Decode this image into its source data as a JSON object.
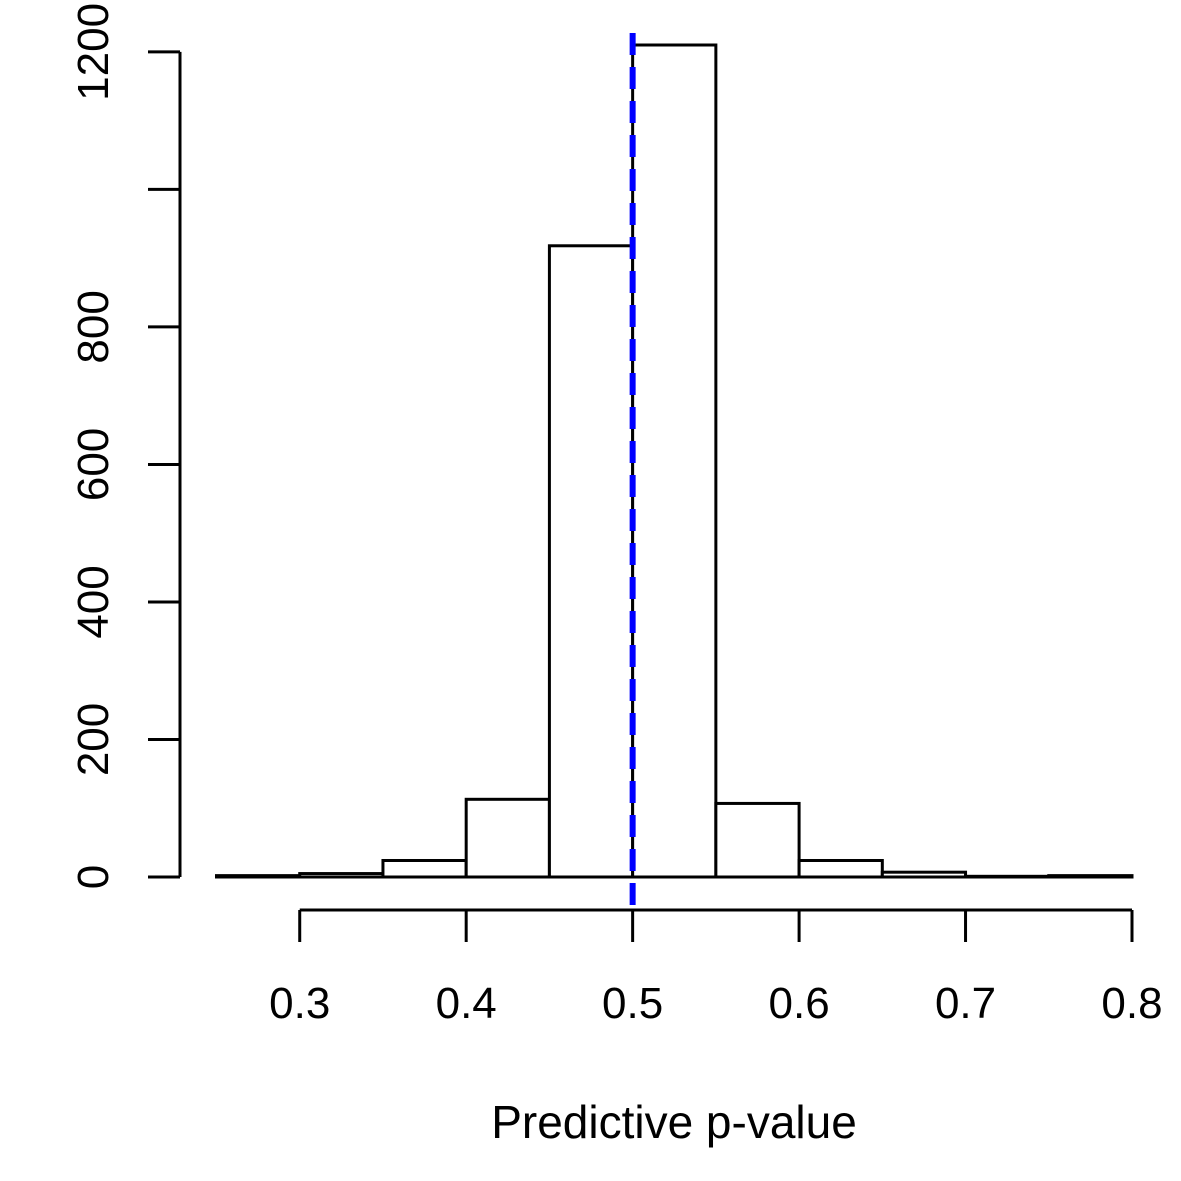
{
  "chart_data": {
    "type": "bar",
    "title": "",
    "xlabel": "Predictive p-value",
    "ylabel": "",
    "bins": [
      {
        "x0": 0.25,
        "x1": 0.3,
        "count": 2
      },
      {
        "x0": 0.3,
        "x1": 0.35,
        "count": 5
      },
      {
        "x0": 0.35,
        "x1": 0.4,
        "count": 24
      },
      {
        "x0": 0.4,
        "x1": 0.45,
        "count": 113
      },
      {
        "x0": 0.45,
        "x1": 0.5,
        "count": 918
      },
      {
        "x0": 0.5,
        "x1": 0.55,
        "count": 1210
      },
      {
        "x0": 0.55,
        "x1": 0.6,
        "count": 107
      },
      {
        "x0": 0.6,
        "x1": 0.65,
        "count": 24
      },
      {
        "x0": 0.65,
        "x1": 0.7,
        "count": 7
      },
      {
        "x0": 0.7,
        "x1": 0.75,
        "count": 1
      },
      {
        "x0": 0.75,
        "x1": 0.8,
        "count": 2
      }
    ],
    "xticks": [
      "0.3",
      "0.4",
      "0.5",
      "0.6",
      "0.7",
      "0.8"
    ],
    "yticks": [
      "0",
      "200",
      "400",
      "600",
      "800",
      "1000",
      "1200"
    ],
    "ytick_labels_shown": [
      "0",
      "200",
      "400",
      "600",
      "800",
      "",
      "1200"
    ],
    "xlim": [
      0.25,
      0.8
    ],
    "ylim": [
      0,
      1210
    ],
    "reference_line": {
      "x": 0.5,
      "style": "dashed",
      "color": "#0000ff"
    },
    "bar_fill": "#ffffff",
    "bar_stroke": "#000000",
    "grid": false,
    "legend": "none"
  }
}
